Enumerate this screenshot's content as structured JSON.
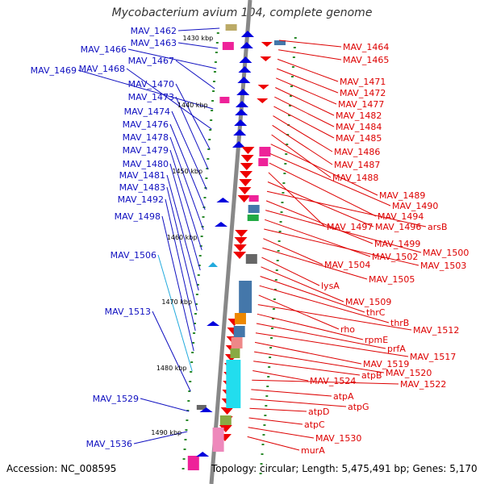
{
  "title": "Mycobacterium avium 104, complete genome",
  "footer": {
    "accession": "Accession: NC_008595",
    "summary": "Topology: circular; Length: 5,475,491 bp; Genes: 5,170"
  },
  "scale_labels": [
    "1430 kbp",
    "1440 kbp",
    "1450 kbp",
    "1460 kbp",
    "1470 kbp",
    "1480 kbp",
    "1490 kbp"
  ],
  "left_labels": [
    "MAV_1462",
    "MAV_1463",
    "MAV_1466",
    "MAV_1467",
    "MAV_1469",
    "MAV_1468",
    "MAV_1470",
    "MAV_1473",
    "MAV_1474",
    "MAV_1476",
    "MAV_1478",
    "MAV_1479",
    "MAV_1480",
    "MAV_1481",
    "MAV_1483",
    "MAV_1492",
    "MAV_1498",
    "MAV_1506",
    "MAV_1513",
    "MAV_1529",
    "MAV_1536"
  ],
  "right_labels": [
    "MAV_1464",
    "MAV_1465",
    "MAV_1471",
    "MAV_1472",
    "MAV_1477",
    "MAV_1482",
    "MAV_1484",
    "MAV_1485",
    "MAV_1486",
    "MAV_1487",
    "MAV_1488",
    "MAV_1489",
    "MAV_1490",
    "MAV_1494",
    "MAV_1497",
    "MAV_1496",
    "arsB",
    "MAV_1499",
    "MAV_1500",
    "MAV_1502",
    "MAV_1503",
    "MAV_1504",
    "MAV_1505",
    "lysA",
    "MAV_1509",
    "thrC",
    "thrB",
    "rho",
    "MAV_1512",
    "rpmE",
    "prfA",
    "MAV_1517",
    "MAV_1519",
    "MAV_1520",
    "atpB",
    "MAV_1524",
    "MAV_1522",
    "atpA",
    "atpG",
    "atpD",
    "atpC",
    "MAV_1530",
    "murA"
  ],
  "colors": {
    "left": "#1010c0",
    "right": "#dd0000",
    "highlight": "#22aadd"
  }
}
